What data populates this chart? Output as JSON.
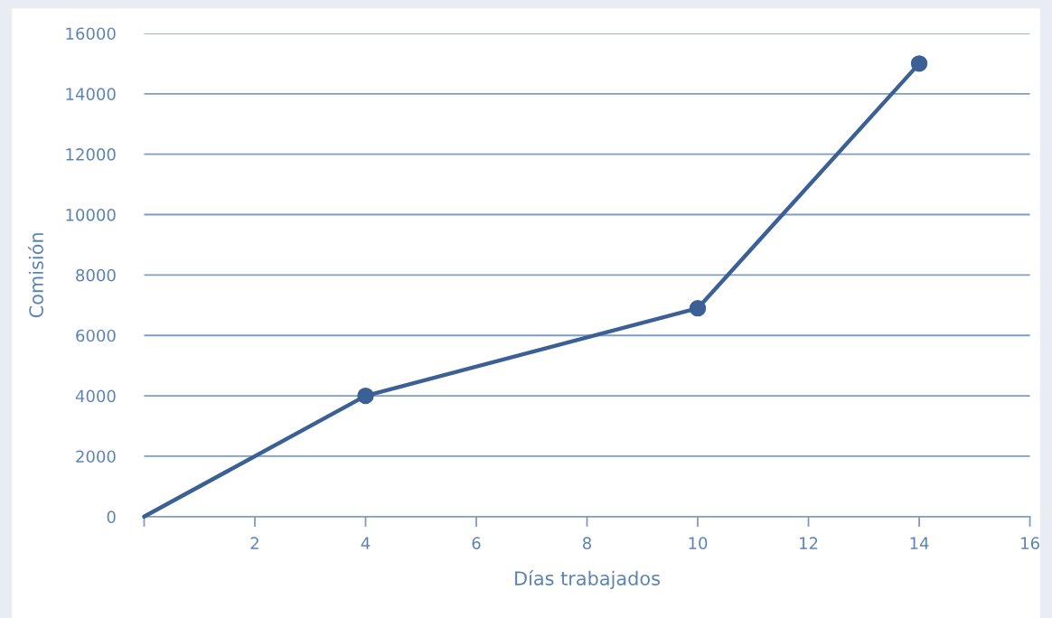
{
  "chart_data": {
    "type": "line",
    "xlabel": "Días trabajados",
    "ylabel": "Comisión",
    "series": [
      {
        "x": [
          0,
          4,
          10,
          14
        ],
        "values": [
          0,
          4000,
          6900,
          15000
        ],
        "color": "#3a6096",
        "marker": "none"
      },
      {
        "type": "scatter",
        "x": [
          4,
          10,
          14
        ],
        "values": [
          4000,
          6900,
          15000
        ],
        "color": "#3a6096",
        "marker": "circle"
      }
    ],
    "xlim": [
      0,
      16
    ],
    "xticks": [
      {
        "value": 0,
        "label": null
      },
      2,
      4,
      6,
      8,
      10,
      12,
      14,
      16
    ],
    "ylim": [
      0,
      16000
    ],
    "yticks": [
      0,
      2000,
      4000,
      6000,
      8000,
      10000,
      12000,
      14000,
      16000
    ],
    "grid": "y",
    "legend": false
  }
}
